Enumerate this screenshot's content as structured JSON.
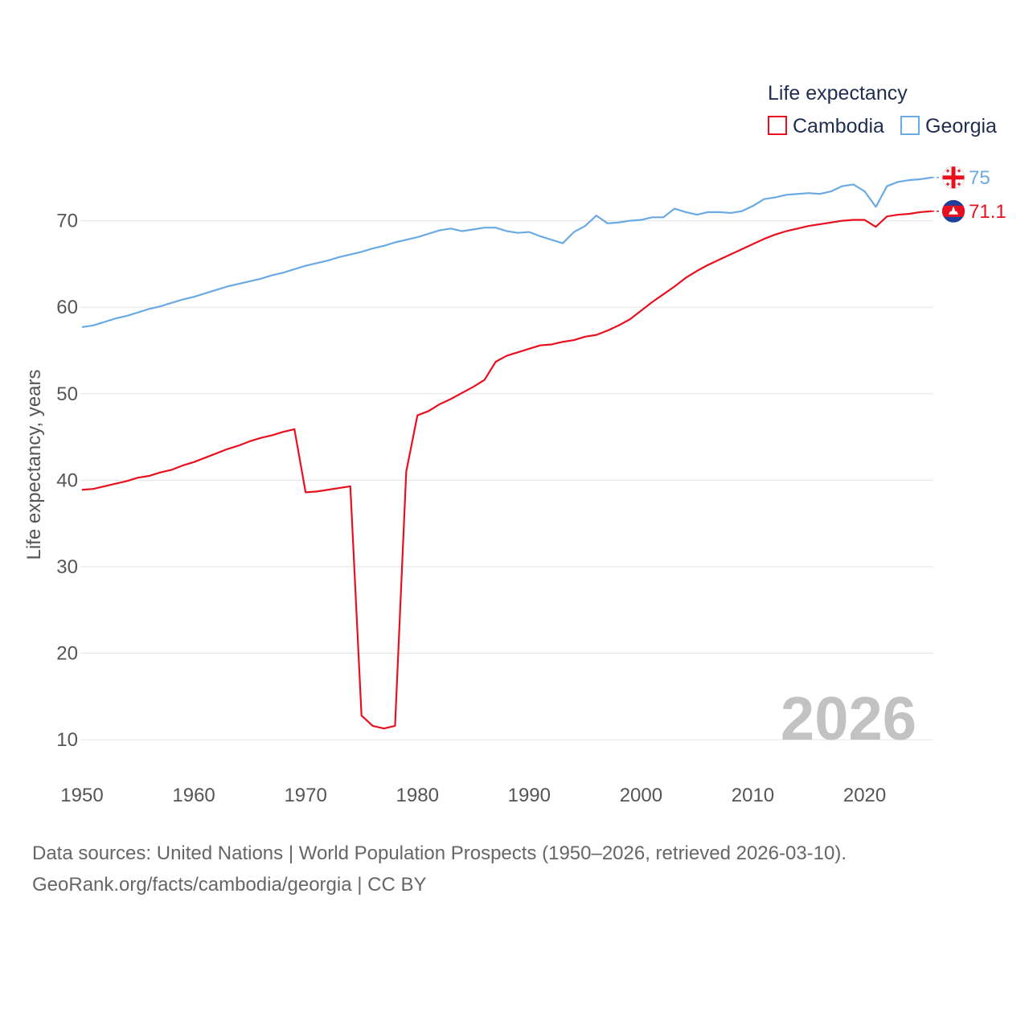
{
  "chart_data": {
    "type": "line",
    "title": "Life expectancy",
    "ylabel": "Life expectancy, years",
    "xlabel": "",
    "xlim": [
      1950,
      2026
    ],
    "ylim": [
      5,
      80
    ],
    "x_ticks": [
      "1950",
      "1960",
      "1970",
      "1980",
      "1990",
      "2000",
      "2010",
      "2020"
    ],
    "y_ticks": [
      "10",
      "20",
      "30",
      "40",
      "50",
      "60",
      "70"
    ],
    "year_watermark": "2026",
    "grid": true,
    "legend_position": "top-right",
    "series": [
      {
        "name": "Cambodia",
        "color": "#e8101f",
        "end_label": "71.1",
        "flag": "cambodia-flag",
        "points": [
          [
            1950,
            38.9
          ],
          [
            1951,
            39.0
          ],
          [
            1952,
            39.3
          ],
          [
            1953,
            39.6
          ],
          [
            1954,
            39.9
          ],
          [
            1955,
            40.3
          ],
          [
            1956,
            40.5
          ],
          [
            1957,
            40.9
          ],
          [
            1958,
            41.2
          ],
          [
            1959,
            41.7
          ],
          [
            1960,
            42.1
          ],
          [
            1961,
            42.6
          ],
          [
            1962,
            43.1
          ],
          [
            1963,
            43.6
          ],
          [
            1964,
            44.0
          ],
          [
            1965,
            44.5
          ],
          [
            1966,
            44.9
          ],
          [
            1967,
            45.2
          ],
          [
            1968,
            45.6
          ],
          [
            1969,
            45.9
          ],
          [
            1970,
            38.6
          ],
          [
            1971,
            38.7
          ],
          [
            1972,
            38.9
          ],
          [
            1973,
            39.1
          ],
          [
            1974,
            39.3
          ],
          [
            1975,
            12.8
          ],
          [
            1976,
            11.6
          ],
          [
            1977,
            11.3
          ],
          [
            1978,
            11.6
          ],
          [
            1979,
            41.0
          ],
          [
            1980,
            47.5
          ],
          [
            1981,
            48.0
          ],
          [
            1982,
            48.8
          ],
          [
            1983,
            49.4
          ],
          [
            1984,
            50.1
          ],
          [
            1985,
            50.8
          ],
          [
            1986,
            51.6
          ],
          [
            1987,
            53.7
          ],
          [
            1988,
            54.4
          ],
          [
            1989,
            54.8
          ],
          [
            1990,
            55.2
          ],
          [
            1991,
            55.6
          ],
          [
            1992,
            55.7
          ],
          [
            1993,
            56.0
          ],
          [
            1994,
            56.2
          ],
          [
            1995,
            56.6
          ],
          [
            1996,
            56.8
          ],
          [
            1997,
            57.3
          ],
          [
            1998,
            57.9
          ],
          [
            1999,
            58.6
          ],
          [
            2000,
            59.6
          ],
          [
            2001,
            60.6
          ],
          [
            2002,
            61.5
          ],
          [
            2003,
            62.4
          ],
          [
            2004,
            63.4
          ],
          [
            2005,
            64.2
          ],
          [
            2006,
            64.9
          ],
          [
            2007,
            65.5
          ],
          [
            2008,
            66.1
          ],
          [
            2009,
            66.7
          ],
          [
            2010,
            67.3
          ],
          [
            2011,
            67.9
          ],
          [
            2012,
            68.4
          ],
          [
            2013,
            68.8
          ],
          [
            2014,
            69.1
          ],
          [
            2015,
            69.4
          ],
          [
            2016,
            69.6
          ],
          [
            2017,
            69.8
          ],
          [
            2018,
            70.0
          ],
          [
            2019,
            70.1
          ],
          [
            2020,
            70.1
          ],
          [
            2021,
            69.3
          ],
          [
            2022,
            70.5
          ],
          [
            2023,
            70.7
          ],
          [
            2024,
            70.8
          ],
          [
            2025,
            71.0
          ],
          [
            2026,
            71.1
          ]
        ]
      },
      {
        "name": "Georgia",
        "color": "#6aaae4",
        "end_label": "75",
        "flag": "georgia-flag",
        "points": [
          [
            1950,
            57.7
          ],
          [
            1951,
            57.9
          ],
          [
            1952,
            58.3
          ],
          [
            1953,
            58.7
          ],
          [
            1954,
            59.0
          ],
          [
            1955,
            59.4
          ],
          [
            1956,
            59.8
          ],
          [
            1957,
            60.1
          ],
          [
            1958,
            60.5
          ],
          [
            1959,
            60.9
          ],
          [
            1960,
            61.2
          ],
          [
            1961,
            61.6
          ],
          [
            1962,
            62.0
          ],
          [
            1963,
            62.4
          ],
          [
            1964,
            62.7
          ],
          [
            1965,
            63.0
          ],
          [
            1966,
            63.3
          ],
          [
            1967,
            63.7
          ],
          [
            1968,
            64.0
          ],
          [
            1969,
            64.4
          ],
          [
            1970,
            64.8
          ],
          [
            1971,
            65.1
          ],
          [
            1972,
            65.4
          ],
          [
            1973,
            65.8
          ],
          [
            1974,
            66.1
          ],
          [
            1975,
            66.4
          ],
          [
            1976,
            66.8
          ],
          [
            1977,
            67.1
          ],
          [
            1978,
            67.5
          ],
          [
            1979,
            67.8
          ],
          [
            1980,
            68.1
          ],
          [
            1981,
            68.5
          ],
          [
            1982,
            68.9
          ],
          [
            1983,
            69.1
          ],
          [
            1984,
            68.8
          ],
          [
            1985,
            69.0
          ],
          [
            1986,
            69.2
          ],
          [
            1987,
            69.2
          ],
          [
            1988,
            68.8
          ],
          [
            1989,
            68.6
          ],
          [
            1990,
            68.7
          ],
          [
            1991,
            68.2
          ],
          [
            1992,
            67.8
          ],
          [
            1993,
            67.4
          ],
          [
            1994,
            68.7
          ],
          [
            1995,
            69.4
          ],
          [
            1996,
            70.6
          ],
          [
            1997,
            69.7
          ],
          [
            1998,
            69.8
          ],
          [
            1999,
            70.0
          ],
          [
            2000,
            70.1
          ],
          [
            2001,
            70.4
          ],
          [
            2002,
            70.4
          ],
          [
            2003,
            71.4
          ],
          [
            2004,
            71.0
          ],
          [
            2005,
            70.7
          ],
          [
            2006,
            71.0
          ],
          [
            2007,
            71.0
          ],
          [
            2008,
            70.9
          ],
          [
            2009,
            71.1
          ],
          [
            2010,
            71.7
          ],
          [
            2011,
            72.5
          ],
          [
            2012,
            72.7
          ],
          [
            2013,
            73.0
          ],
          [
            2014,
            73.1
          ],
          [
            2015,
            73.2
          ],
          [
            2016,
            73.1
          ],
          [
            2017,
            73.4
          ],
          [
            2018,
            74.0
          ],
          [
            2019,
            74.2
          ],
          [
            2020,
            73.4
          ],
          [
            2021,
            71.6
          ],
          [
            2022,
            74.0
          ],
          [
            2023,
            74.5
          ],
          [
            2024,
            74.7
          ],
          [
            2025,
            74.8
          ],
          [
            2026,
            75.0
          ]
        ]
      }
    ]
  },
  "footer": {
    "sources": "Data sources: United Nations | World Population Prospects (1950–2026, retrieved 2026-03-10).",
    "credit": "GeoRank.org/facts/cambodia/georgia | CC BY"
  }
}
